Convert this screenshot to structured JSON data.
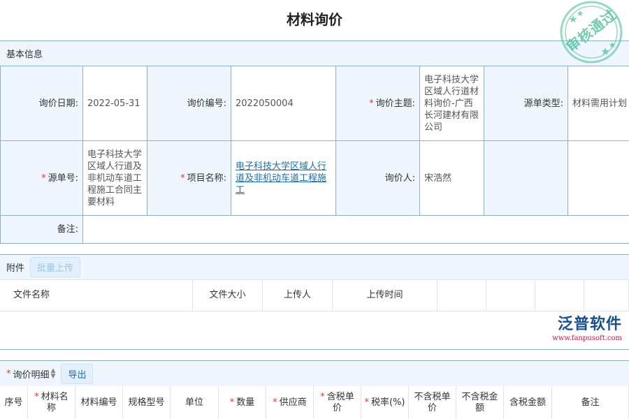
{
  "title": "材料询价",
  "basic": {
    "section_label": "基本信息",
    "fields": {
      "inquiry_date": {
        "label": "询价日期:",
        "value": "2022-05-31"
      },
      "inquiry_no": {
        "label": "询价编号:",
        "value": "2022050004"
      },
      "subject": {
        "label": "询价主题:",
        "value": "电子科技大学区域人行道材料询价-广西长河建材有限公司"
      },
      "source_type": {
        "label": "源单类型:",
        "value": "材料需用计划"
      },
      "source_no": {
        "label": "源单号:",
        "value": "电子科技大学区域人行道及非机动车道工程施工合同主要材料"
      },
      "project": {
        "label": "项目名称:",
        "value": "电子科技大学区域人行道及非机动车道工程施工"
      },
      "inquirer": {
        "label": "询价人:",
        "value": "宋浩然"
      },
      "remark": {
        "label": "备注:",
        "value": ""
      }
    }
  },
  "attachments": {
    "section_label": "附件",
    "upload_button": "批量上传",
    "columns": [
      "文件名称",
      "文件大小",
      "上传人",
      "上传时间",
      "",
      "",
      "",
      ""
    ]
  },
  "details": {
    "section_label": "询价明细",
    "export_button": "导出",
    "columns": [
      {
        "label": "序号",
        "req": ""
      },
      {
        "label": "材料名称",
        "req": "*"
      },
      {
        "label": "材料编号",
        "req": ""
      },
      {
        "label": "规格型号",
        "req": ""
      },
      {
        "label": "单位",
        "req": ""
      },
      {
        "label": "数量",
        "req": "*"
      },
      {
        "label": "供应商",
        "req": "*"
      },
      {
        "label": "含税单价",
        "req": "*"
      },
      {
        "label": "税率(%)",
        "req": "*"
      },
      {
        "label": "不含税单价",
        "req": ""
      },
      {
        "label": "不含税金额",
        "req": ""
      },
      {
        "label": "含税金额",
        "req": ""
      },
      {
        "label": "备注",
        "req": ""
      }
    ]
  },
  "stamp": {
    "text": "审核通过",
    "color": "#50be9f"
  },
  "logo": {
    "name": "泛普软件",
    "url": "www.fanpusoft.com"
  },
  "colors": {
    "required": "#ee3333",
    "link": "#1a6ea8",
    "border": "#8fb0c0",
    "label_bg": "#f0f6fd"
  }
}
